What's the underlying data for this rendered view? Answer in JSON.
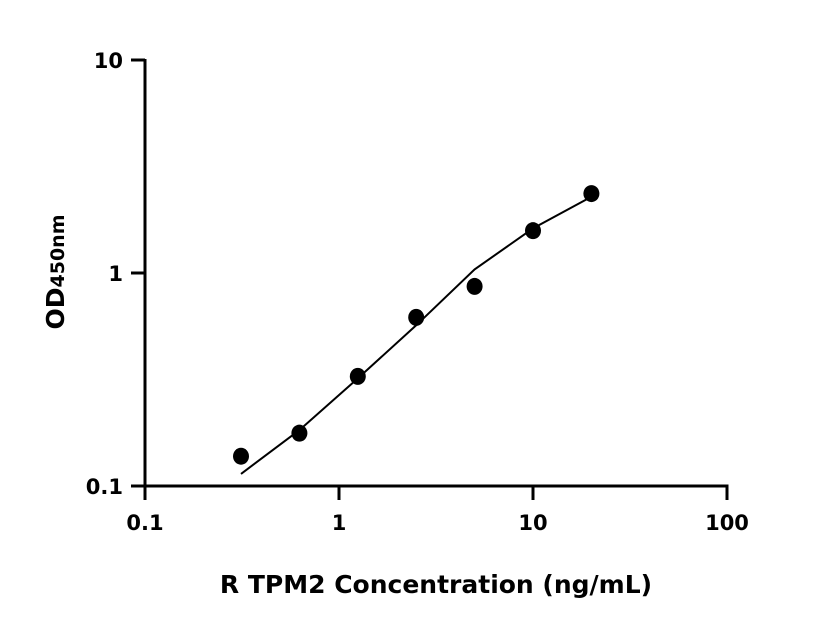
{
  "chart_data": {
    "type": "scatter",
    "xlabel": "R TPM2 Concentration (ng/mL)",
    "ylabel_main": "OD",
    "ylabel_sub": "450nm",
    "xscale": "log",
    "yscale": "log",
    "xlim": [
      0.1,
      100
    ],
    "ylim": [
      0.1,
      10
    ],
    "x_ticks": [
      0.1,
      1,
      10,
      100
    ],
    "x_tick_labels": [
      "0.1",
      "1",
      "10",
      "100"
    ],
    "y_ticks": [
      0.1,
      1,
      10
    ],
    "y_tick_labels": [
      "0.1",
      "1",
      "10"
    ],
    "grid": false,
    "points": {
      "x": [
        0.3125,
        0.625,
        1.25,
        2.5,
        5,
        10,
        20
      ],
      "y": [
        0.138,
        0.177,
        0.327,
        0.619,
        0.865,
        1.58,
        2.36
      ]
    },
    "fit_curve": {
      "x": [
        0.3125,
        0.625,
        1.25,
        2.5,
        5,
        10,
        20
      ],
      "y": [
        0.114,
        0.183,
        0.32,
        0.568,
        1.04,
        1.62,
        2.28
      ]
    },
    "colors": {
      "points": "#000000",
      "line": "#000000"
    }
  }
}
